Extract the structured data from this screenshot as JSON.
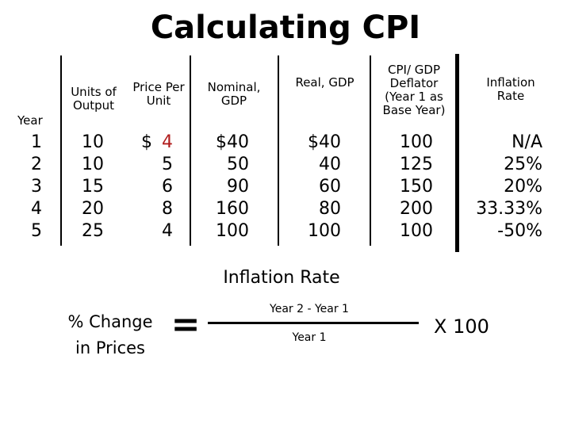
{
  "title": "Calculating CPI",
  "headers": {
    "year": "Year",
    "units": "Units of Output",
    "price": "Price Per Unit",
    "nominal": "Nominal, GDP",
    "real": "Real, GDP",
    "cpi": "CPI/ GDP Deflator (Year 1 as Base Year)",
    "inflation": "Inflation Rate"
  },
  "years": [
    "1",
    "2",
    "3",
    "4",
    "5"
  ],
  "units": [
    "10",
    "10",
    "15",
    "20",
    "25"
  ],
  "dollar_sign": "$",
  "prices": [
    "4",
    "5",
    "6",
    "8",
    "4"
  ],
  "nominal_gdp": [
    "$40",
    "50",
    "90",
    "160",
    "100"
  ],
  "real_gdp": [
    "$40",
    "40",
    "60",
    "80",
    "100"
  ],
  "cpi": [
    "100",
    "125",
    "150",
    "200",
    "100"
  ],
  "inflation_rate": [
    "N/A",
    "25%",
    "20%",
    "33.33%",
    "-50%"
  ],
  "accent_color": "#b01c1c",
  "formula": {
    "title": "Inflation Rate",
    "lhs": "% Change in Prices",
    "equals": "=",
    "numerator": "Year 2 - Year 1",
    "denominator": "Year 1",
    "multiplier": "X 100"
  }
}
